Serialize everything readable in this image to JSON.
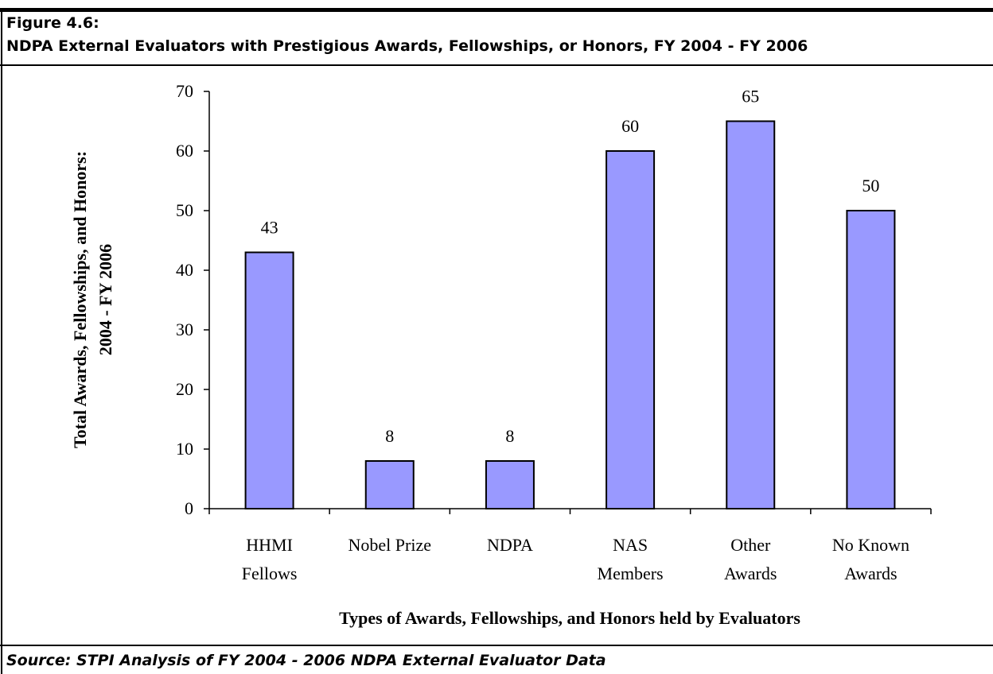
{
  "figure_label": "Figure 4.6:",
  "source": "Source: STPI Analysis of FY 2004 - 2006 NDPA External Evaluator Data",
  "chart_data": {
    "type": "bar",
    "title": "NDPA External Evaluators with Prestigious Awards, Fellowships, or Honors, FY 2004 - FY 2006",
    "xlabel": "Types of Awards, Fellowships, and Honors held by Evaluators",
    "ylabel": [
      "Total Awards, Fellowships, and Honors:",
      "2004 - FY 2006"
    ],
    "categories": [
      [
        "HHMI",
        "Fellows"
      ],
      [
        "Nobel Prize"
      ],
      [
        "NDPA"
      ],
      [
        "NAS",
        "Members"
      ],
      [
        "Other",
        "Awards"
      ],
      [
        "No Known",
        "Awards"
      ]
    ],
    "values": [
      43,
      8,
      8,
      60,
      65,
      50
    ],
    "color": "#9999ff",
    "ylim": [
      0,
      70
    ],
    "yticks": [
      0,
      10,
      20,
      30,
      40,
      50,
      60,
      70
    ],
    "grid": false
  }
}
